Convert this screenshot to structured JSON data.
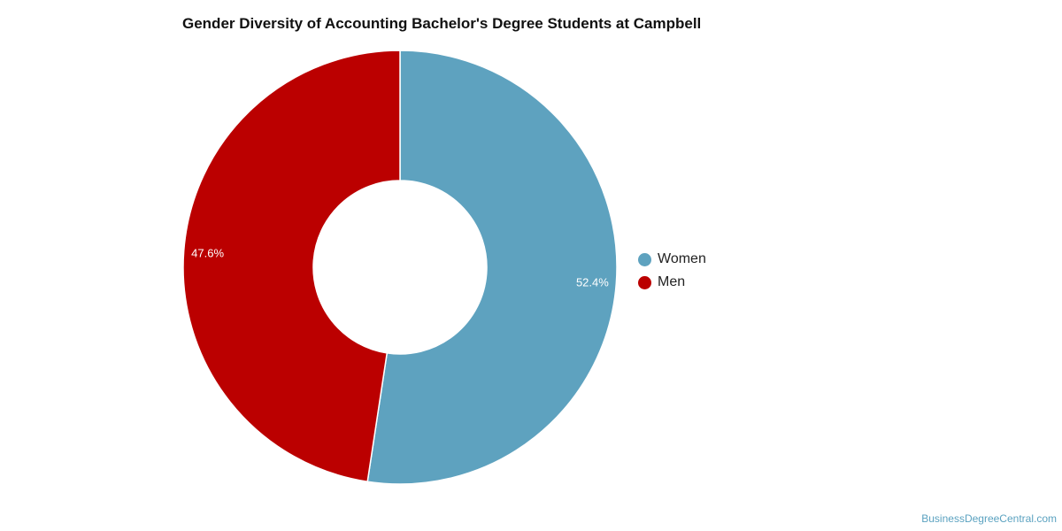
{
  "chart_data": {
    "type": "pie",
    "title": "Gender Diversity of Accounting Bachelor's Degree Students at Campbell",
    "donut": true,
    "legend_position": "right",
    "slices": [
      {
        "label": "Women",
        "value": 52.4,
        "display": "52.4%",
        "color": "#5ea2bf"
      },
      {
        "label": "Men",
        "value": 47.6,
        "display": "47.6%",
        "color": "#bb0000"
      }
    ]
  },
  "watermark": "BusinessDegreeCentral.com"
}
